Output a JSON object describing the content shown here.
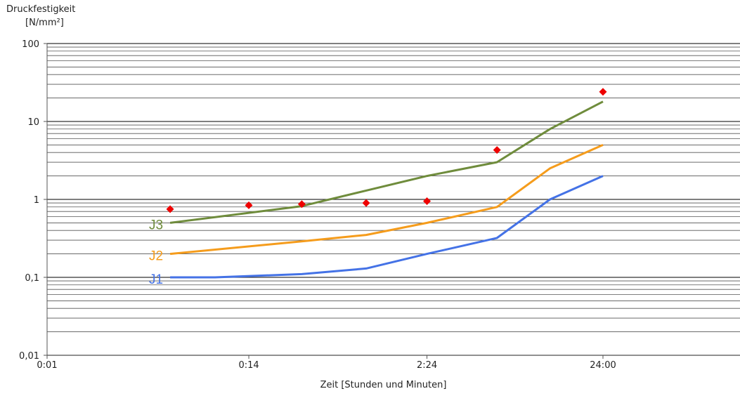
{
  "chart_data": {
    "type": "line",
    "y_title": "Druckfestigkeit",
    "y_unit": "[N/mm²]",
    "xlabel": "Zeit [Stunden und Minuten]",
    "y_scale": "log",
    "ylim": [
      0.01,
      100
    ],
    "y_ticks": [
      "0,01",
      "0,1",
      "1",
      "10",
      "100"
    ],
    "x_scale": "log",
    "x_ticks": [
      "0:01",
      "0:14",
      "2:24",
      "24:00"
    ],
    "grid": "horizontal minor log gridlines",
    "series": [
      {
        "name": "J1",
        "color": "#4472e6",
        "x": [
          "0:05",
          "0:09",
          "0:28",
          "1:05",
          "2:24",
          "6:00",
          "12:00",
          "24:00"
        ],
        "y": [
          0.1,
          0.1,
          0.11,
          0.13,
          0.2,
          0.32,
          1.0,
          2.0
        ]
      },
      {
        "name": "J2",
        "color": "#f59c1c",
        "x": [
          "0:05",
          "0:28",
          "1:05",
          "2:24",
          "6:00",
          "12:00",
          "24:00"
        ],
        "y": [
          0.2,
          0.29,
          0.35,
          0.5,
          0.8,
          2.5,
          5.0
        ]
      },
      {
        "name": "J3",
        "color": "#6f8c3c",
        "x": [
          "0:05",
          "0:28",
          "1:05",
          "2:24",
          "6:00",
          "12:00",
          "24:00"
        ],
        "y": [
          0.5,
          0.82,
          1.3,
          2.0,
          3.0,
          8.0,
          18.0
        ]
      },
      {
        "name": "",
        "type": "scatter",
        "marker": "diamond",
        "color": "#ee0000",
        "x": [
          "0:05",
          "0:14",
          "0:28",
          "1:05",
          "2:24",
          "6:00",
          "24:00"
        ],
        "y": [
          0.75,
          0.84,
          0.87,
          0.9,
          0.95,
          4.3,
          24.0
        ]
      }
    ]
  }
}
